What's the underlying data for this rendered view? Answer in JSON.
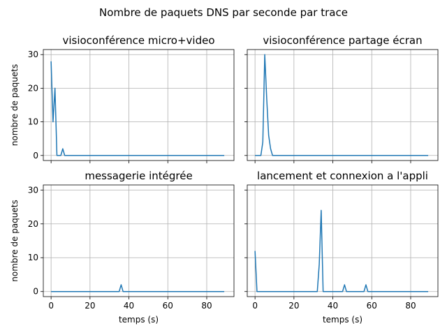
{
  "suptitle": "Nombre de paquets DNS par seconde par trace",
  "chart_data": [
    {
      "type": "line",
      "title": "visioconférence micro+video",
      "xlabel": "",
      "ylabel": "nombre de paquets",
      "xlim": [
        -4,
        94
      ],
      "ylim": [
        -1.5,
        31.5
      ],
      "grid": true,
      "x_ticks": [
        0,
        20,
        40,
        60,
        80
      ],
      "y_ticks": [
        0,
        10,
        20,
        30
      ],
      "x_tick_labels_shown": false,
      "y_tick_labels_shown": true,
      "series": [
        {
          "points": [
            [
              0,
              28
            ],
            [
              1,
              10
            ],
            [
              2,
              20
            ],
            [
              3,
              0
            ],
            [
              4,
              0
            ],
            [
              5,
              0
            ],
            [
              6,
              2
            ],
            [
              7,
              0
            ],
            [
              8,
              0
            ],
            [
              89,
              0
            ]
          ]
        }
      ]
    },
    {
      "type": "line",
      "title": "visioconférence partage écran",
      "xlabel": "",
      "ylabel": "",
      "xlim": [
        -4,
        94
      ],
      "ylim": [
        -1.5,
        31.5
      ],
      "grid": true,
      "x_ticks": [
        0,
        20,
        40,
        60,
        80
      ],
      "y_ticks": [
        0,
        10,
        20,
        30
      ],
      "x_tick_labels_shown": false,
      "y_tick_labels_shown": false,
      "series": [
        {
          "points": [
            [
              0,
              0
            ],
            [
              3,
              0
            ],
            [
              4,
              4
            ],
            [
              5,
              30
            ],
            [
              6,
              17
            ],
            [
              7,
              6
            ],
            [
              8,
              2
            ],
            [
              9,
              0
            ],
            [
              10,
              0
            ],
            [
              89,
              0
            ]
          ]
        }
      ]
    },
    {
      "type": "line",
      "title": "messagerie intégrée",
      "xlabel": "temps (s)",
      "ylabel": "nombre de paquets",
      "xlim": [
        -4,
        94
      ],
      "ylim": [
        -1.5,
        31.5
      ],
      "grid": true,
      "x_ticks": [
        0,
        20,
        40,
        60,
        80
      ],
      "y_ticks": [
        0,
        10,
        20,
        30
      ],
      "x_tick_labels_shown": true,
      "y_tick_labels_shown": true,
      "series": [
        {
          "points": [
            [
              0,
              0
            ],
            [
              35,
              0
            ],
            [
              36,
              2
            ],
            [
              37,
              0
            ],
            [
              89,
              0
            ]
          ]
        }
      ]
    },
    {
      "type": "line",
      "title": "lancement et connexion a l'appli",
      "xlabel": "temps (s)",
      "ylabel": "",
      "xlim": [
        -4,
        94
      ],
      "ylim": [
        -1.5,
        31.5
      ],
      "grid": true,
      "x_ticks": [
        0,
        20,
        40,
        60,
        80
      ],
      "y_ticks": [
        0,
        10,
        20,
        30
      ],
      "x_tick_labels_shown": true,
      "y_tick_labels_shown": false,
      "series": [
        {
          "points": [
            [
              0,
              12
            ],
            [
              1,
              0
            ],
            [
              2,
              0
            ],
            [
              32,
              0
            ],
            [
              33,
              8
            ],
            [
              34,
              24
            ],
            [
              35,
              0
            ],
            [
              45,
              0
            ],
            [
              46,
              2
            ],
            [
              47,
              0
            ],
            [
              56,
              0
            ],
            [
              57,
              2
            ],
            [
              58,
              0
            ],
            [
              89,
              0
            ]
          ]
        }
      ]
    }
  ]
}
